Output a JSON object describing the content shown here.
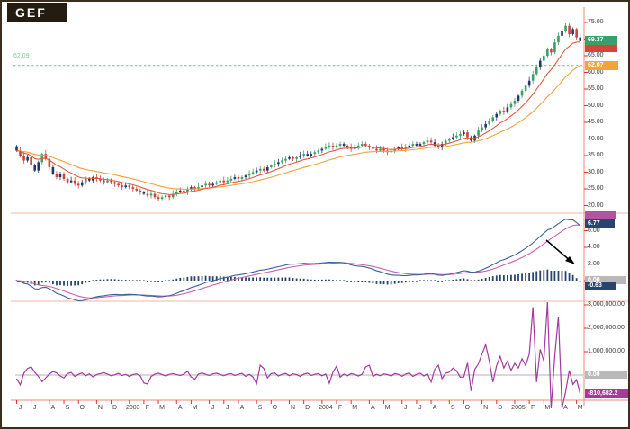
{
  "window": {
    "symbol": "GEF"
  },
  "colors": {
    "candle_up": "#3f9e63",
    "candle_down": "#cc4437",
    "candle_neutral": "#22386b",
    "ma_fast": "#e05a40",
    "ma_slow": "#efa13f",
    "level_line": "#6fc293",
    "macd_line": "#3c6096",
    "signal_line": "#ca5fb2",
    "histogram": "#2a4470",
    "oscillator": "#a2399f",
    "panel_separator": "#f5b3a3",
    "axis_line": "#ef8a78",
    "axis_tick": "#e03222",
    "zero_line": "#cccccc",
    "annotation_arrow": "#000000"
  },
  "chart_data": {
    "type": "candlestick",
    "symbol": "GEF",
    "frequency": "weekly",
    "x_axis": {
      "month_labels": [
        "J",
        "J",
        "A",
        "S",
        "O",
        "N",
        "D",
        "2003",
        "F",
        "M",
        "A",
        "M",
        "J",
        "J",
        "A",
        "S",
        "O",
        "N",
        "D",
        "2004",
        "F",
        "M",
        "A",
        "M",
        "J",
        "J",
        "A",
        "S",
        "O",
        "N",
        "D",
        "2005",
        "F",
        "M",
        "A",
        "M"
      ],
      "weeks_per_month": [
        4,
        5,
        4,
        4,
        5,
        4,
        5,
        4,
        4,
        5,
        4,
        5,
        4,
        4,
        5,
        4,
        5,
        4,
        5,
        4,
        4,
        5,
        4,
        5,
        4,
        4,
        5,
        4,
        5,
        4,
        5,
        4,
        4,
        5,
        4,
        2
      ]
    },
    "price": {
      "ylim": [
        18,
        77
      ],
      "ticks": [
        [
          "75.00",
          75
        ],
        [
          "70.00",
          70
        ],
        [
          "65.00",
          65
        ],
        [
          "60.00",
          60
        ],
        [
          "55.00",
          55
        ],
        [
          "50.00",
          50
        ],
        [
          "45.00",
          45
        ],
        [
          "40.00",
          40
        ],
        [
          "35.00",
          35
        ],
        [
          "30.00",
          30
        ],
        [
          "25.00",
          25
        ],
        [
          "20.00",
          20
        ]
      ],
      "first_open": 37.8,
      "weekly_closes": [
        36.5,
        35.0,
        33.5,
        34.5,
        32.0,
        30.5,
        33.0,
        35.5,
        34.0,
        31.5,
        29.5,
        28.5,
        29.5,
        28.0,
        27.0,
        27.5,
        26.5,
        26.0,
        27.0,
        28.0,
        27.5,
        28.5,
        28.0,
        27.5,
        27.0,
        27.5,
        27.0,
        26.5,
        26.0,
        25.5,
        26.0,
        25.5,
        25.0,
        24.5,
        24.0,
        23.5,
        23.0,
        23.5,
        22.5,
        22.0,
        22.5,
        23.0,
        22.5,
        23.5,
        24.0,
        24.5,
        24.0,
        25.0,
        25.5,
        25.0,
        25.5,
        26.0,
        26.5,
        26.0,
        26.5,
        27.0,
        27.5,
        27.0,
        27.5,
        28.0,
        28.5,
        28.0,
        28.5,
        29.0,
        29.5,
        30.0,
        30.5,
        31.0,
        30.5,
        31.5,
        32.0,
        32.5,
        33.0,
        33.5,
        34.0,
        34.5,
        34.0,
        34.5,
        35.0,
        35.5,
        35.0,
        35.5,
        36.0,
        36.5,
        37.0,
        37.5,
        38.0,
        37.5,
        38.0,
        38.5,
        38.0,
        37.5,
        37.0,
        37.5,
        38.0,
        38.5,
        38.0,
        37.5,
        37.0,
        36.5,
        37.0,
        36.5,
        36.0,
        36.5,
        37.0,
        37.5,
        37.0,
        37.5,
        38.0,
        38.5,
        38.0,
        38.5,
        39.0,
        39.5,
        39.0,
        38.0,
        37.5,
        38.5,
        39.5,
        40.0,
        40.5,
        41.0,
        41.5,
        42.0,
        40.5,
        39.5,
        41.0,
        42.5,
        43.5,
        44.5,
        45.5,
        46.5,
        47.5,
        48.5,
        48.0,
        49.5,
        50.5,
        51.5,
        53.0,
        54.5,
        56.0,
        57.5,
        59.5,
        61.5,
        63.5,
        65.0,
        67.0,
        66.0,
        69.0,
        71.0,
        72.5,
        74.0,
        71.5,
        73.0,
        70.5,
        69.37
      ],
      "overlays": [
        {
          "name": "ma-fast",
          "period": 10
        },
        {
          "name": "ma-slow",
          "period": 25
        }
      ],
      "level_line": {
        "value": 62.09,
        "label": "62.09"
      },
      "last_close_label": "69.37",
      "ma_slow_label": "62.07"
    },
    "macd": {
      "fast": 12,
      "slow": 26,
      "signal": 9,
      "ticks": [
        [
          "6.00",
          6
        ],
        [
          "4.00",
          4
        ],
        [
          "2.00",
          2
        ],
        [
          "0.00",
          0
        ]
      ],
      "last_macd_label": "6.77",
      "zero_label": "0.00",
      "last_hist_label": "-0.63"
    },
    "volume_osc": {
      "ticks": [
        [
          "3,000,000.00",
          3000000
        ],
        [
          "2,000,000.00",
          2000000
        ],
        [
          "1,000,000.00",
          1000000
        ]
      ],
      "values": [
        -150000,
        -420000,
        80000,
        280000,
        350000,
        120000,
        -60000,
        -280000,
        -120000,
        40000,
        150000,
        90000,
        -40000,
        -120000,
        60000,
        110000,
        -60000,
        30000,
        90000,
        -30000,
        50000,
        -80000,
        20000,
        60000,
        100000,
        40000,
        -30000,
        10000,
        70000,
        -20000,
        30000,
        -60000,
        20000,
        50000,
        -30000,
        -340000,
        -380000,
        -60000,
        40000,
        80000,
        20000,
        -40000,
        30000,
        60000,
        20000,
        -20000,
        40000,
        160000,
        -80000,
        -180000,
        40000,
        90000,
        30000,
        -20000,
        50000,
        80000,
        20000,
        -30000,
        40000,
        60000,
        -20000,
        30000,
        70000,
        -60000,
        30000,
        -80000,
        -380000,
        420000,
        280000,
        -120000,
        60000,
        90000,
        -40000,
        30000,
        70000,
        -30000,
        50000,
        20000,
        -60000,
        40000,
        80000,
        -20000,
        30000,
        60000,
        -30000,
        40000,
        -350000,
        120000,
        380000,
        -90000,
        40000,
        -30000,
        60000,
        20000,
        -40000,
        30000,
        350000,
        420000,
        -60000,
        30000,
        -30000,
        50000,
        20000,
        -40000,
        60000,
        30000,
        -50000,
        40000,
        90000,
        -60000,
        30000,
        80000,
        -40000,
        50000,
        -300000,
        250000,
        420000,
        -150000,
        80000,
        120000,
        300000,
        180000,
        -90000,
        -80000,
        520000,
        -680000,
        240000,
        480000,
        900000,
        1300000,
        600000,
        -300000,
        400000,
        800000,
        300000,
        600000,
        200000,
        500000,
        300000,
        700000,
        400000,
        900000,
        2900000,
        -300000,
        1100000,
        600000,
        3300000,
        -2300000,
        800000,
        2500000,
        -2400000,
        -700000,
        200000,
        -400000,
        -200000,
        -810682.2
      ],
      "zero_label": "0.00",
      "last_label": "-810,682.2"
    }
  }
}
